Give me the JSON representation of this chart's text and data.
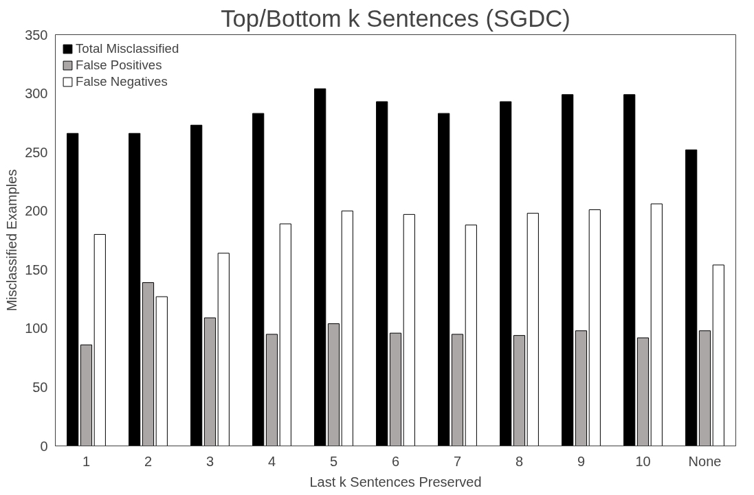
{
  "chart_data": {
    "type": "bar",
    "title": "Top/Bottom k Sentences (SGDC)",
    "xlabel": "Last k Sentences Preserved",
    "ylabel": "Misclassified Examples",
    "categories": [
      "1",
      "2",
      "3",
      "4",
      "5",
      "6",
      "7",
      "8",
      "9",
      "10",
      "None"
    ],
    "series": [
      {
        "name": "Total Misclassified",
        "color": "#000000",
        "values": [
          266,
          266,
          273,
          283,
          304,
          293,
          283,
          293,
          299,
          299,
          252
        ]
      },
      {
        "name": "False Positives",
        "color": "#aba7a7",
        "values": [
          86,
          139,
          109,
          95,
          104,
          96,
          95,
          94,
          98,
          92,
          98
        ]
      },
      {
        "name": "False Negatives",
        "color": "#ffffff",
        "values": [
          180,
          127,
          164,
          189,
          200,
          197,
          188,
          198,
          201,
          206,
          154
        ]
      }
    ],
    "ylim": [
      0,
      350
    ],
    "yticks": [
      0,
      50,
      100,
      150,
      200,
      250,
      300,
      350
    ],
    "grid": false,
    "legend": "top left"
  }
}
